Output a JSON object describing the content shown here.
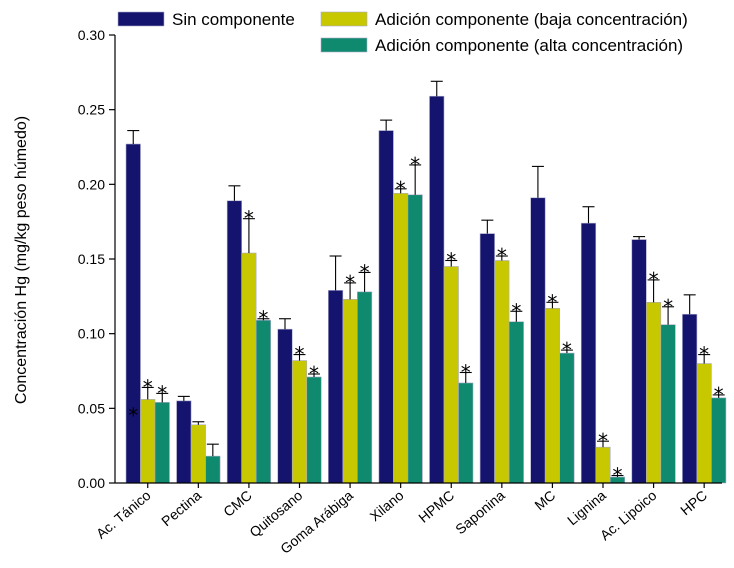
{
  "chart_data": {
    "type": "bar",
    "ylabel": "Concentración Hg (mg/kg peso húmedo)",
    "xlabel": "",
    "ylim": [
      0,
      0.3
    ],
    "yticks": [
      "0.00",
      "0.05",
      "0.10",
      "0.15",
      "0.20",
      "0.25",
      "0.30"
    ],
    "legend_position": "top",
    "categories": [
      "Ac. Tánico",
      "Pectina",
      "CMC",
      "Quitosano",
      "Goma Arábiga",
      "Xilano",
      "HPMC",
      "Saponina",
      "MC",
      "Lignina",
      "Ac. Lipoico",
      "HPC"
    ],
    "series": [
      {
        "name": "Sin componente",
        "color": "#14146e",
        "values": [
          0.227,
          0.055,
          0.189,
          0.103,
          0.129,
          0.236,
          0.259,
          0.167,
          0.191,
          0.174,
          0.163,
          0.113
        ],
        "errors": [
          0.009,
          0.003,
          0.01,
          0.007,
          0.023,
          0.007,
          0.01,
          0.009,
          0.021,
          0.011,
          0.002,
          0.013
        ],
        "stars": [
          false,
          false,
          false,
          false,
          false,
          false,
          false,
          false,
          false,
          false,
          false,
          false
        ]
      },
      {
        "name": "Adición componente (baja concentración)",
        "color": "#c8c800",
        "values": [
          0.056,
          0.039,
          0.154,
          0.082,
          0.123,
          0.194,
          0.145,
          0.149,
          0.117,
          0.024,
          0.121,
          0.08
        ],
        "errors": [
          0.008,
          0.002,
          0.023,
          0.004,
          0.011,
          0.003,
          0.004,
          0.003,
          0.004,
          0.004,
          0.015,
          0.006
        ],
        "stars": [
          true,
          false,
          true,
          true,
          true,
          true,
          true,
          true,
          true,
          true,
          true,
          true
        ]
      },
      {
        "name": "Adición componente (alta concentración)",
        "color": "#0f8a6e",
        "values": [
          0.054,
          0.018,
          0.109,
          0.071,
          0.128,
          0.193,
          0.067,
          0.108,
          0.087,
          0.004,
          0.106,
          0.057
        ],
        "errors": [
          0.006,
          0.008,
          0.001,
          0.002,
          0.013,
          0.02,
          0.007,
          0.007,
          0.002,
          0.001,
          0.012,
          0.002
        ],
        "stars": [
          true,
          false,
          true,
          true,
          true,
          true,
          true,
          true,
          true,
          true,
          true,
          true
        ]
      }
    ],
    "extra_stars": [
      {
        "category_index": 0,
        "series_index": 0,
        "value": 0.048,
        "symbol": "*"
      }
    ]
  }
}
